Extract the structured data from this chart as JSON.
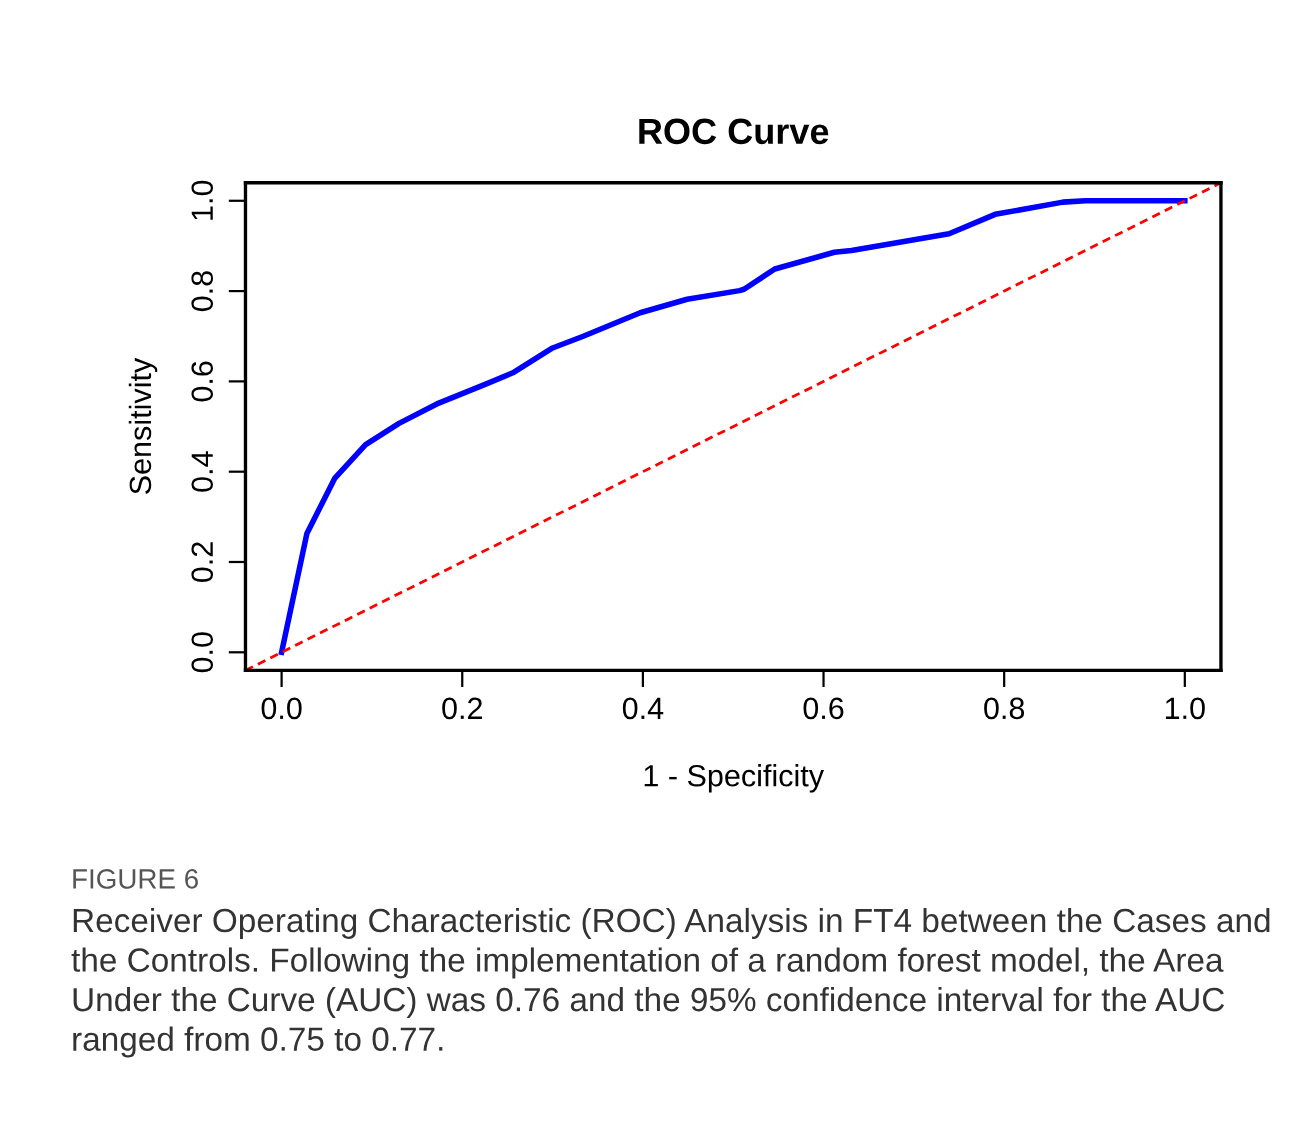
{
  "chart_data": {
    "type": "line",
    "title": "ROC Curve",
    "xlabel": "1 - Specificity",
    "ylabel": "Sensitivity",
    "xlim": [
      -0.04,
      1.04
    ],
    "ylim": [
      -0.04,
      1.04
    ],
    "xticks": [
      {
        "value": 0,
        "label": "0.0"
      },
      0.2,
      0.4,
      0.6,
      0.8,
      {
        "value": 1,
        "label": "1.0"
      }
    ],
    "yticks": [
      {
        "value": 0,
        "label": "0.0"
      },
      0.2,
      0.4,
      0.6,
      0.8,
      {
        "value": 1,
        "label": "1.0"
      }
    ],
    "grid": false,
    "series": [
      {
        "color": "#0000ff",
        "line_style": "solid",
        "x": [
          0,
          0.028,
          0.059,
          0.093,
          0.13,
          0.174,
          0.226,
          0.256,
          0.3,
          0.334,
          0.397,
          0.449,
          0.507,
          0.512,
          0.546,
          0.612,
          0.631,
          0.739,
          0.79,
          0.865,
          0.89,
          1.0
        ],
        "values": [
          0,
          0.263,
          0.386,
          0.46,
          0.507,
          0.552,
          0.594,
          0.619,
          0.674,
          0.7,
          0.752,
          0.782,
          0.801,
          0.804,
          0.849,
          0.886,
          0.89,
          0.927,
          0.97,
          0.997,
          1.0,
          1.0
        ]
      },
      {
        "color": "#ff0000",
        "line_style": "dashed",
        "x": [
          -0.04,
          1.04
        ],
        "values": [
          -0.04,
          1.04
        ]
      }
    ],
    "annotations": [
      "FIGURE 6",
      "Receiver Operating Characteristic (ROC) Analysis in FT4 between the Cases and the Controls. Following the implementation of a random forest model, the Area Under the Curve (AUC) was 0.76 and the 95% confidence interval for the AUC ranged from 0.75 to 0.77."
    ]
  }
}
